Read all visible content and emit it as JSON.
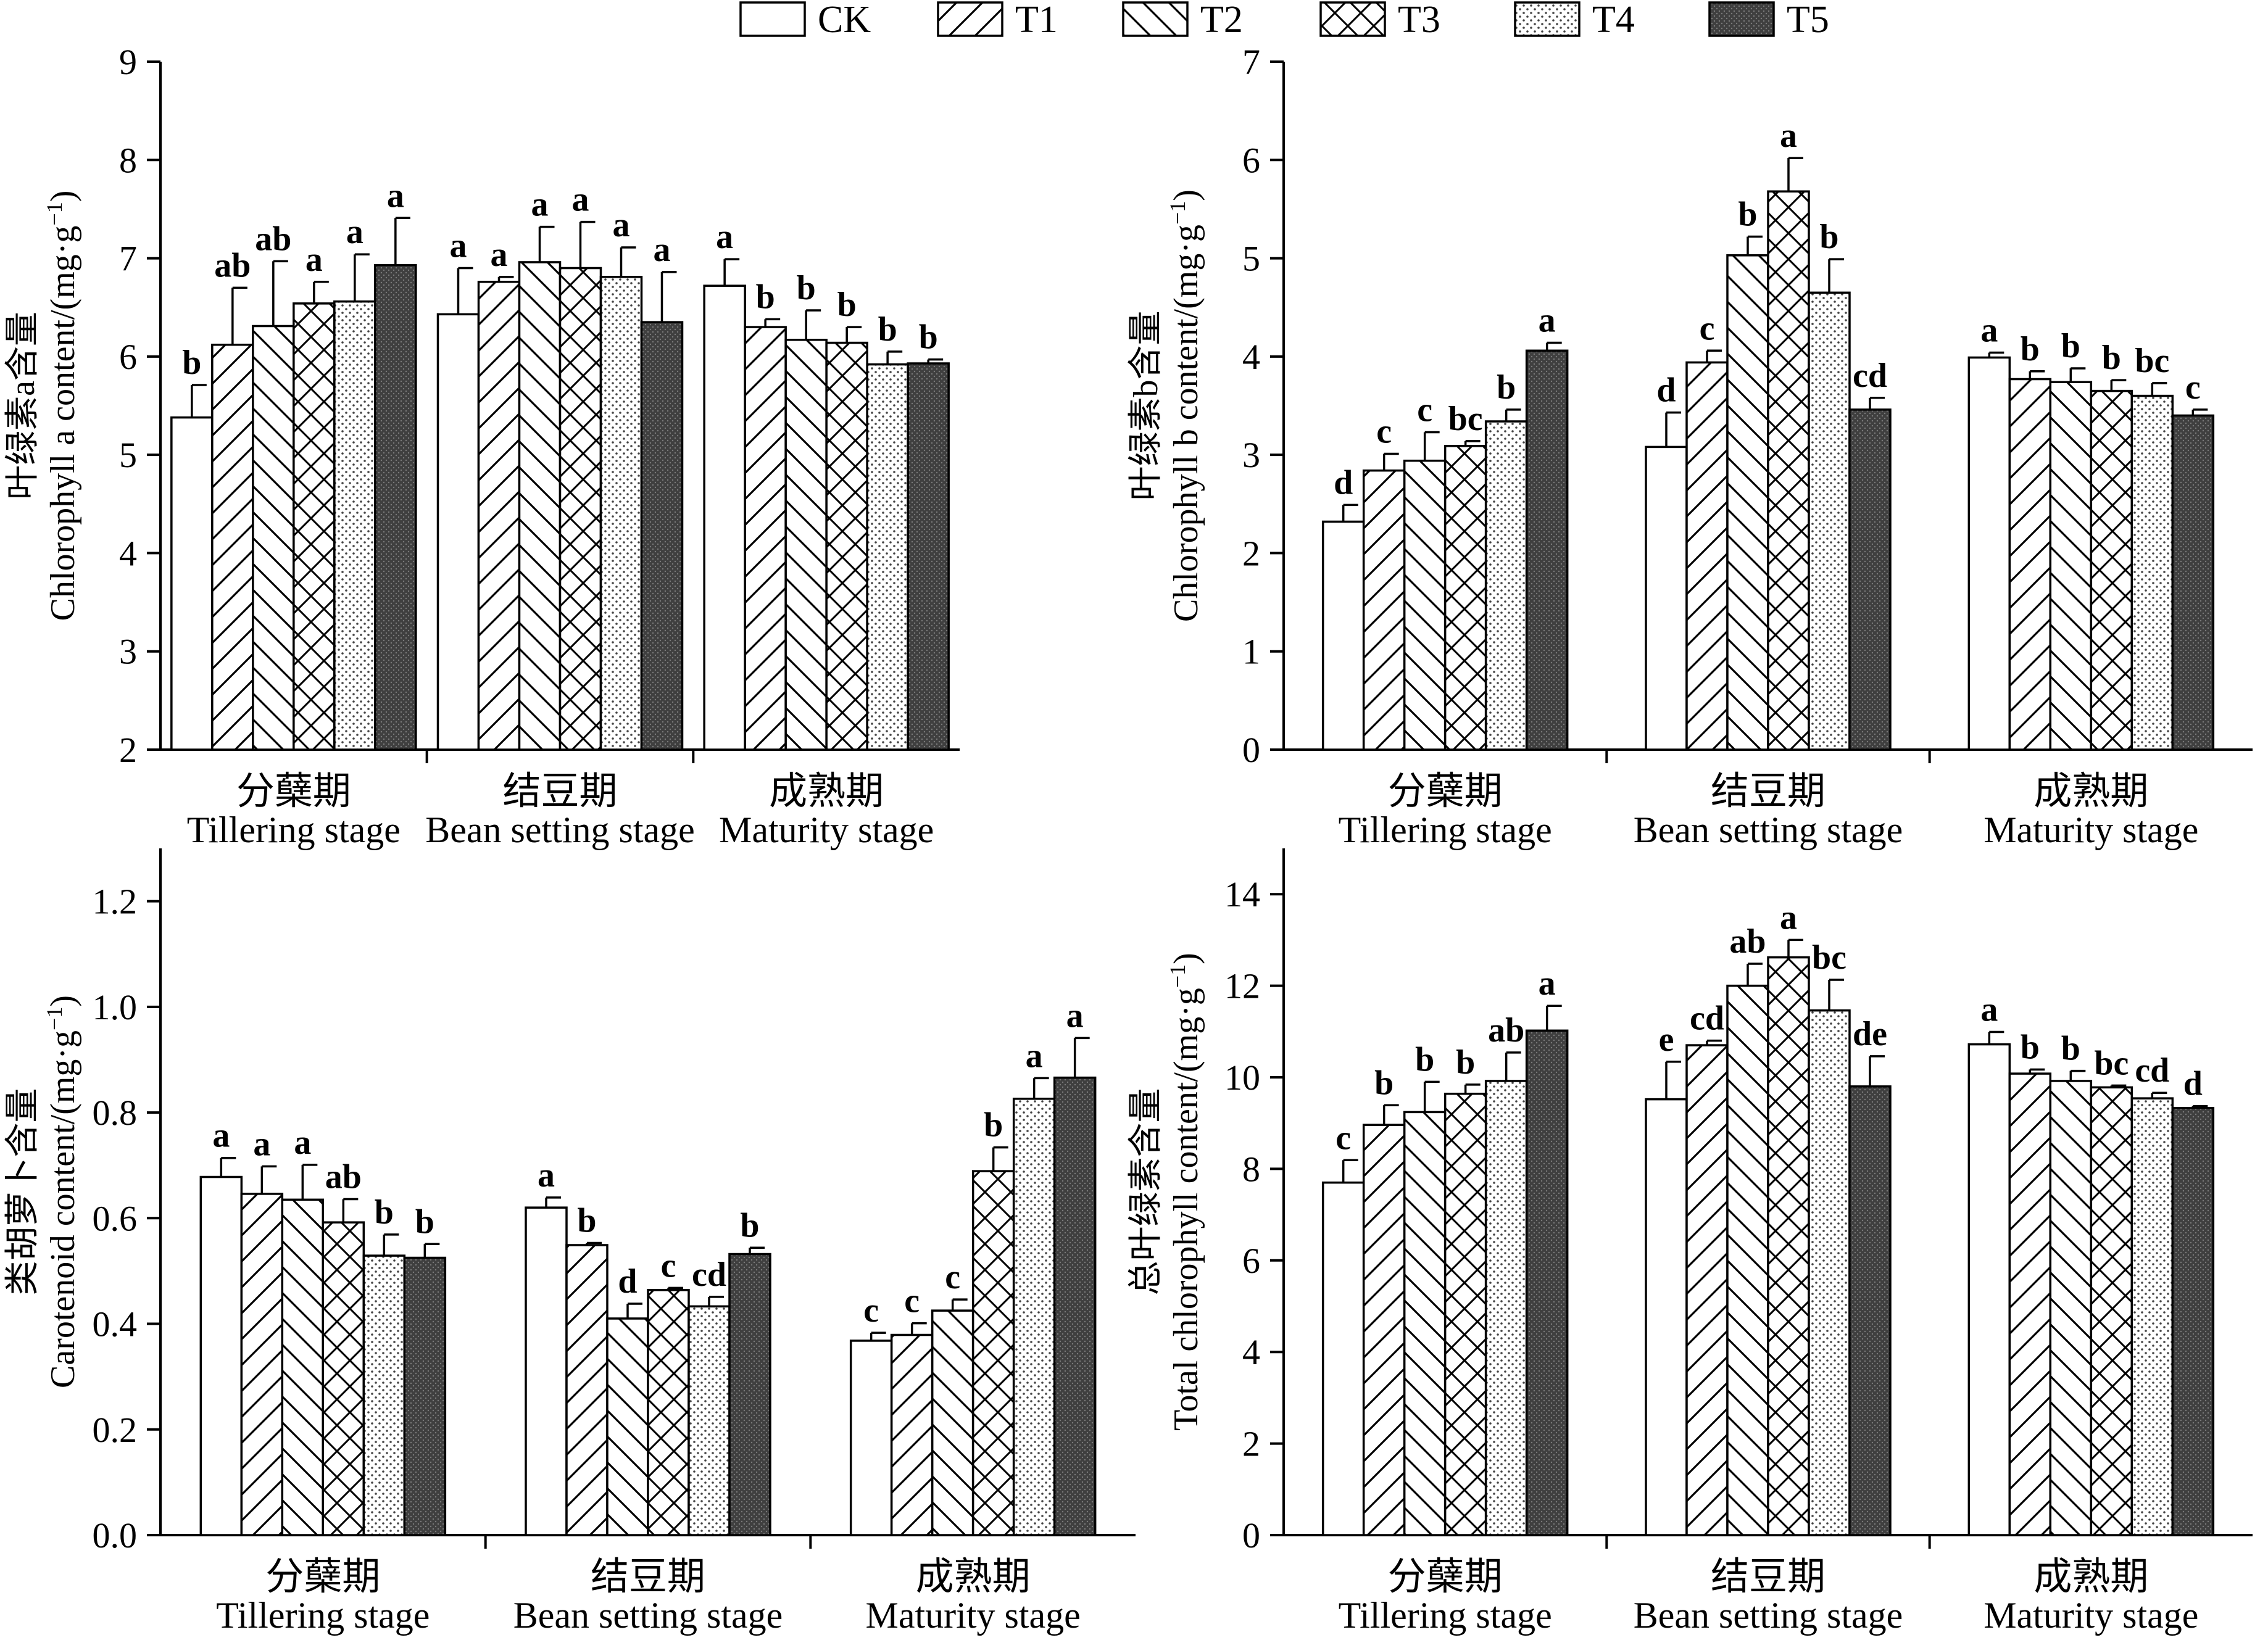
{
  "legend": {
    "items": [
      {
        "label": "CK",
        "pattern": "blank"
      },
      {
        "label": "T1",
        "pattern": "diag-fwd"
      },
      {
        "label": "T2",
        "pattern": "diag-back"
      },
      {
        "label": "T3",
        "pattern": "cross"
      },
      {
        "label": "T4",
        "pattern": "dots"
      },
      {
        "label": "T5",
        "pattern": "dark"
      }
    ]
  },
  "colors": {
    "ink": "#000000",
    "fill_blank": "#ffffff",
    "fill_dark": "#4a4a4a"
  },
  "chart_data": [
    {
      "type": "bar",
      "ylabel_cn": "叶绿素a含量",
      "ylabel_en": "Chlorophyll a content/(mg·g",
      "ylabel_sup": "−1",
      "ylabel_tail": ")",
      "ylim": [
        2,
        9
      ],
      "yticks": [
        "2",
        "3",
        "4",
        "5",
        "6",
        "7",
        "8",
        "9"
      ],
      "categories": [
        {
          "cn": "分蘖期",
          "en": "Tillering stage"
        },
        {
          "cn": "结豆期",
          "en": "Bean setting stage"
        },
        {
          "cn": "成熟期",
          "en": "Maturity stage"
        }
      ],
      "series": [
        {
          "name": "CK",
          "values": [
            5.38,
            6.43,
            6.72
          ],
          "errors": [
            0.33,
            0.47,
            0.27
          ],
          "letters": [
            "b",
            "a",
            "a"
          ]
        },
        {
          "name": "T1",
          "values": [
            6.12,
            6.76,
            6.3
          ],
          "errors": [
            0.58,
            0.05,
            0.08
          ],
          "letters": [
            "ab",
            "a",
            "b"
          ]
        },
        {
          "name": "T2",
          "values": [
            6.31,
            6.96,
            6.17
          ],
          "errors": [
            0.66,
            0.36,
            0.3
          ],
          "letters": [
            "ab",
            "a",
            "b"
          ]
        },
        {
          "name": "T3",
          "values": [
            6.54,
            6.9,
            6.14
          ],
          "errors": [
            0.22,
            0.47,
            0.16
          ],
          "letters": [
            "a",
            "a",
            "b"
          ]
        },
        {
          "name": "T4",
          "values": [
            6.56,
            6.81,
            5.92
          ],
          "errors": [
            0.48,
            0.3,
            0.13
          ],
          "letters": [
            "a",
            "a",
            "b"
          ]
        },
        {
          "name": "T5",
          "values": [
            6.93,
            6.35,
            5.93
          ],
          "errors": [
            0.48,
            0.51,
            0.04
          ],
          "letters": [
            "a",
            "a",
            "b"
          ]
        }
      ]
    },
    {
      "type": "bar",
      "ylabel_cn": "叶绿素b含量",
      "ylabel_en": "Chlorophyll b content/(mg·g",
      "ylabel_sup": "−1",
      "ylabel_tail": ")",
      "ylim": [
        0,
        7
      ],
      "yticks": [
        "0",
        "1",
        "2",
        "3",
        "4",
        "5",
        "6",
        "7"
      ],
      "categories": [
        {
          "cn": "分蘖期",
          "en": "Tillering stage"
        },
        {
          "cn": "结豆期",
          "en": "Bean setting stage"
        },
        {
          "cn": "成熟期",
          "en": "Maturity stage"
        }
      ],
      "series": [
        {
          "name": "CK",
          "values": [
            2.32,
            3.08,
            3.99
          ],
          "errors": [
            0.17,
            0.35,
            0.05
          ],
          "letters": [
            "d",
            "d",
            "a"
          ]
        },
        {
          "name": "T1",
          "values": [
            2.84,
            3.94,
            3.77
          ],
          "errors": [
            0.17,
            0.12,
            0.08
          ],
          "letters": [
            "c",
            "c",
            "b"
          ]
        },
        {
          "name": "T2",
          "values": [
            2.94,
            5.03,
            3.74
          ],
          "errors": [
            0.29,
            0.19,
            0.14
          ],
          "letters": [
            "c",
            "b",
            "b"
          ]
        },
        {
          "name": "T3",
          "values": [
            3.09,
            5.68,
            3.65
          ],
          "errors": [
            0.05,
            0.34,
            0.11
          ],
          "letters": [
            "bc",
            "a",
            "b"
          ]
        },
        {
          "name": "T4",
          "values": [
            3.34,
            4.65,
            3.6
          ],
          "errors": [
            0.12,
            0.34,
            0.13
          ],
          "letters": [
            "b",
            "b",
            "bc"
          ]
        },
        {
          "name": "T5",
          "values": [
            4.06,
            3.46,
            3.4
          ],
          "errors": [
            0.08,
            0.12,
            0.06
          ],
          "letters": [
            "a",
            "cd",
            "c"
          ]
        }
      ]
    },
    {
      "type": "bar",
      "ylabel_cn": "类胡萝卜含量",
      "ylabel_en": "Carotenoid content/(mg·g",
      "ylabel_sup": "−1",
      "ylabel_tail": ")",
      "ylim": [
        0,
        1.3
      ],
      "yticks": [
        "0.0",
        "0.2",
        "0.4",
        "0.6",
        "0.8",
        "1.0",
        "1.2"
      ],
      "categories": [
        {
          "cn": "分蘖期",
          "en": "Tillering stage"
        },
        {
          "cn": "结豆期",
          "en": "Bean setting stage"
        },
        {
          "cn": "成熟期",
          "en": "Maturity stage"
        }
      ],
      "series": [
        {
          "name": "CK",
          "values": [
            0.678,
            0.62,
            0.368
          ],
          "errors": [
            0.036,
            0.019,
            0.015
          ],
          "letters": [
            "a",
            "a",
            "c"
          ]
        },
        {
          "name": "T1",
          "values": [
            0.646,
            0.549,
            0.379
          ],
          "errors": [
            0.052,
            0.004,
            0.022
          ],
          "letters": [
            "a",
            "b",
            "c"
          ]
        },
        {
          "name": "T2",
          "values": [
            0.635,
            0.41,
            0.425
          ],
          "errors": [
            0.066,
            0.028,
            0.021
          ],
          "letters": [
            "a",
            "d",
            "c"
          ]
        },
        {
          "name": "T3",
          "values": [
            0.592,
            0.464,
            0.689
          ],
          "errors": [
            0.044,
            0.004,
            0.045
          ],
          "letters": [
            "ab",
            "c",
            "b"
          ]
        },
        {
          "name": "T4",
          "values": [
            0.529,
            0.433,
            0.826
          ],
          "errors": [
            0.04,
            0.018,
            0.039
          ],
          "letters": [
            "b",
            "cd",
            "a"
          ]
        },
        {
          "name": "T5",
          "values": [
            0.525,
            0.532,
            0.866
          ],
          "errors": [
            0.026,
            0.012,
            0.075
          ],
          "letters": [
            "b",
            "b",
            "a"
          ]
        }
      ]
    },
    {
      "type": "bar",
      "ylabel_cn": "总叶绿素含量",
      "ylabel_en": "Total chlorophyll content/(mg·g",
      "ylabel_sup": "−1",
      "ylabel_tail": ")",
      "ylim": [
        0,
        15
      ],
      "yticks": [
        "0",
        "2",
        "4",
        "6",
        "8",
        "10",
        "12",
        "14"
      ],
      "categories": [
        {
          "cn": "分蘖期",
          "en": "Tillering stage"
        },
        {
          "cn": "结豆期",
          "en": "Bean setting stage"
        },
        {
          "cn": "成熟期",
          "en": "Maturity stage"
        }
      ],
      "series": [
        {
          "name": "CK",
          "values": [
            7.7,
            9.52,
            10.72
          ],
          "errors": [
            0.49,
            0.82,
            0.27
          ],
          "letters": [
            "c",
            "e",
            "a"
          ]
        },
        {
          "name": "T1",
          "values": [
            8.96,
            10.7,
            10.08
          ],
          "errors": [
            0.43,
            0.1,
            0.09
          ],
          "letters": [
            "b",
            "cd",
            "b"
          ]
        },
        {
          "name": "T2",
          "values": [
            9.24,
            12.0,
            9.92
          ],
          "errors": [
            0.66,
            0.48,
            0.22
          ],
          "letters": [
            "b",
            "ab",
            "b"
          ]
        },
        {
          "name": "T3",
          "values": [
            9.64,
            12.62,
            9.78
          ],
          "errors": [
            0.2,
            0.38,
            0.04
          ],
          "letters": [
            "b",
            "a",
            "bc"
          ]
        },
        {
          "name": "T4",
          "values": [
            9.92,
            11.46,
            9.54
          ],
          "errors": [
            0.62,
            0.67,
            0.12
          ],
          "letters": [
            "ab",
            "bc",
            "cd"
          ]
        },
        {
          "name": "T5",
          "values": [
            11.02,
            9.8,
            9.33
          ],
          "errors": [
            0.54,
            0.66,
            0.04
          ],
          "letters": [
            "a",
            "de",
            "d"
          ]
        }
      ]
    }
  ]
}
